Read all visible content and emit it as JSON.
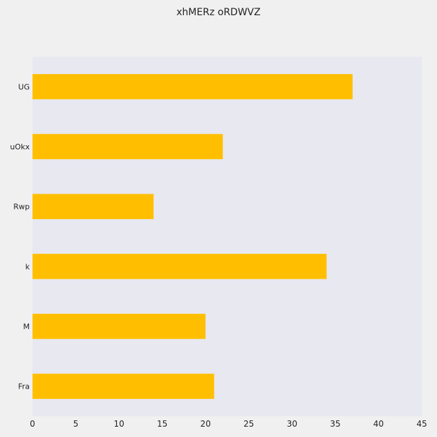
{
  "chart_data": {
    "type": "bar",
    "orientation": "horizontal",
    "title": "xhMERz oRDWVZ",
    "xlabel": "",
    "ylabel": "",
    "categories": [
      "UG",
      "uOkx",
      "Rwp",
      "k",
      "M",
      "Fra"
    ],
    "values": [
      37,
      22,
      14,
      34,
      20,
      21
    ],
    "xlim": [
      0,
      45
    ],
    "xticks": [
      0,
      5,
      10,
      15,
      20,
      25,
      30,
      35,
      40,
      45
    ],
    "grid": false,
    "legend": "none"
  },
  "colors": {
    "bar": "#ffbf00",
    "plot_background": "#e8e8f0",
    "page_background": "#f0f0f0",
    "text": "#222222"
  }
}
